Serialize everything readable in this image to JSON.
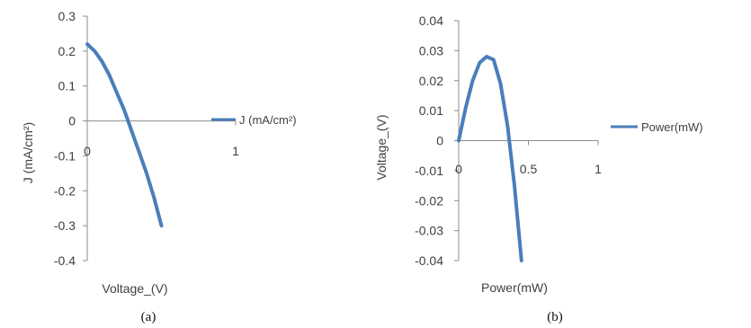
{
  "colors": {
    "series": "#4a7ebb"
  },
  "chart_data": [
    {
      "type": "line",
      "caption": "(a)",
      "xlabel": "Voltage_(V)",
      "ylabel": "J (mA/cm²)",
      "xlim": [
        0,
        1
      ],
      "ylim": [
        -0.4,
        0.3
      ],
      "x_ticks": [
        "0",
        "1"
      ],
      "y_ticks": [
        "0.3",
        "0.2",
        "0.1",
        "0",
        "-0.1",
        "-0.2",
        "-0.3",
        "-0.4"
      ],
      "legend_position": "right",
      "series": [
        {
          "name": "J (mA/cm²)",
          "x": [
            0,
            0.05,
            0.1,
            0.15,
            0.2,
            0.25,
            0.3,
            0.35,
            0.4,
            0.45,
            0.5
          ],
          "y": [
            0.22,
            0.2,
            0.17,
            0.13,
            0.08,
            0.03,
            -0.03,
            -0.09,
            -0.15,
            -0.22,
            -0.3
          ]
        }
      ]
    },
    {
      "type": "line",
      "caption": "(b)",
      "xlabel": "Power(mW)",
      "ylabel": "Voltage_(V)",
      "xlim": [
        0,
        1
      ],
      "ylim": [
        -0.04,
        0.04
      ],
      "x_ticks": [
        "0",
        "0.5",
        "1"
      ],
      "y_ticks": [
        "0.04",
        "0.03",
        "0.02",
        "0.01",
        "0",
        "-0.01",
        "-0.02",
        "-0.03",
        "-0.04"
      ],
      "legend_position": "right",
      "series": [
        {
          "name": "Power(mW)",
          "x": [
            0,
            0.05,
            0.1,
            0.15,
            0.2,
            0.25,
            0.3,
            0.35,
            0.4,
            0.45
          ],
          "y": [
            0,
            0.011,
            0.02,
            0.026,
            0.028,
            0.027,
            0.019,
            0.005,
            -0.015,
            -0.04
          ]
        }
      ]
    }
  ]
}
